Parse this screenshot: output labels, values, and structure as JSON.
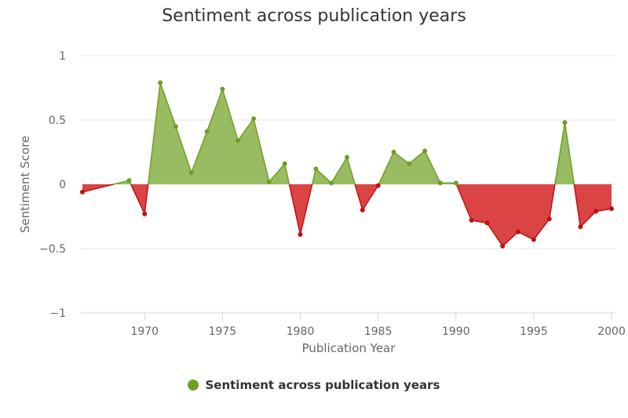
{
  "chart_data": {
    "type": "area",
    "title": "Sentiment across publication years",
    "xlabel": "Publication Year",
    "ylabel": "Sentiment Score",
    "xlim": [
      1965.9,
      2000.3
    ],
    "ylim": [
      -1,
      1
    ],
    "x_ticks": [
      "1970",
      "1975",
      "1980",
      "1985",
      "1990",
      "1995",
      "2000"
    ],
    "y_ticks": [
      "1",
      "0.5",
      "0",
      "−0.5",
      "−1"
    ],
    "grid": true,
    "legend_position": "bottom",
    "colors": {
      "positive_fill": "#93b85a",
      "positive_line": "#6e9e24",
      "negative_fill": "#d93a3a",
      "negative_line": "#c40e0e"
    },
    "series": [
      {
        "name": "Sentiment across publication years",
        "x": [
          1966,
          1969,
          1970,
          1971,
          1972,
          1973,
          1974,
          1975,
          1976,
          1977,
          1978,
          1979,
          1980,
          1981,
          1982,
          1983,
          1984,
          1985,
          1986,
          1987,
          1988,
          1989,
          1990,
          1991,
          1992,
          1993,
          1994,
          1995,
          1996,
          1997,
          1998,
          1999,
          2000
        ],
        "values": [
          -0.06,
          0.03,
          -0.23,
          0.79,
          0.45,
          0.09,
          0.41,
          0.74,
          0.34,
          0.51,
          0.02,
          0.16,
          -0.39,
          0.12,
          0.01,
          0.21,
          -0.2,
          -0.01,
          0.25,
          0.16,
          0.26,
          0.01,
          0.01,
          -0.28,
          -0.3,
          -0.48,
          -0.37,
          -0.43,
          -0.27,
          0.48,
          -0.33,
          -0.21,
          -0.19
        ]
      }
    ]
  }
}
